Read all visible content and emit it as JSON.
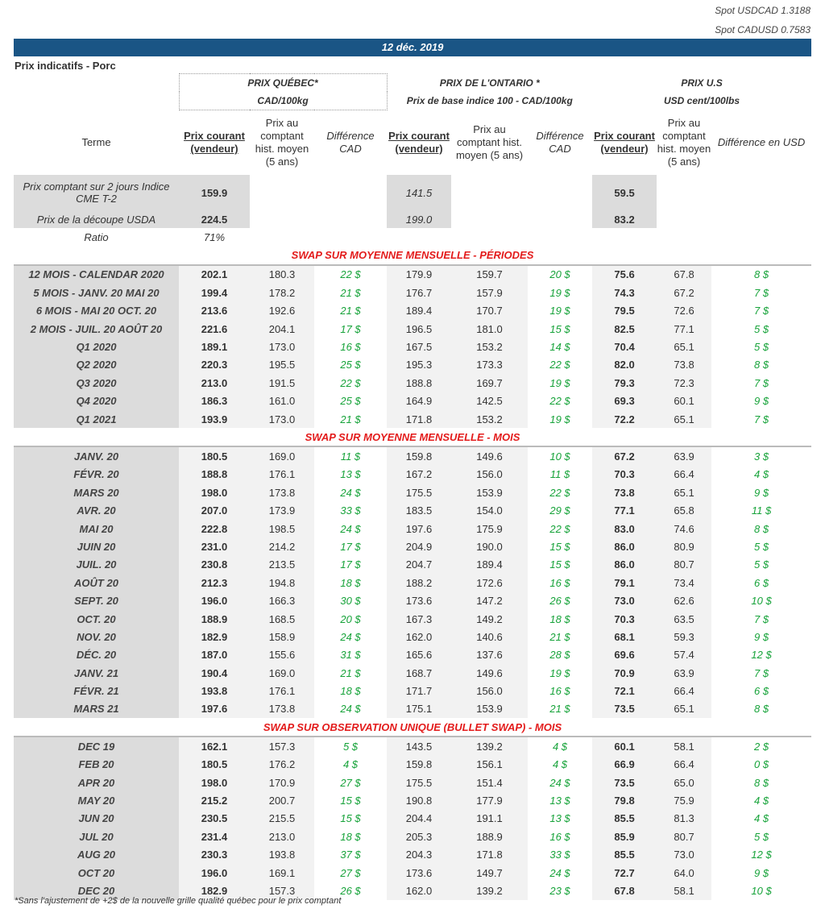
{
  "spot_usdcad": "Spot USDCAD 1.3188",
  "spot_cadusd": "Spot CADUSD 0.7583",
  "date": "12 déc. 2019",
  "subtitle": "Prix indicatifs - Porc",
  "groups": {
    "quebec": {
      "title": "PRIX QUÉBEC*",
      "unit": "CAD/100kg"
    },
    "ontario": {
      "title": "PRIX DE L'ONTARIO *",
      "unit": "Prix de base indice 100 - CAD/100kg"
    },
    "us": {
      "title": "PRIX U.S",
      "unit": "USD cent/100lbs"
    }
  },
  "columns": {
    "terme": "Terme",
    "q_prix": "Prix courant (vendeur)",
    "q_hist": "Prix au comptant hist. moyen (5 ans)",
    "q_diff": "Différence CAD",
    "o_prix": "Prix courant (vendeur)",
    "o_hist": "Prix au comptant hist. moyen (5 ans)",
    "o_diff": "Différence CAD",
    "u_prix": "Prix courant (vendeur)",
    "u_hist": "Prix au comptant hist. moyen (5 ans)",
    "u_diff": "Différence en USD"
  },
  "spot_rows": [
    {
      "label": "Prix comptant sur 2 jours Indice CME T-2",
      "q": "159.9",
      "o": "141.5",
      "u": "59.5"
    },
    {
      "label": "Prix de la découpe USDA",
      "q": "224.5",
      "o": "199.0",
      "u": "83.2"
    }
  ],
  "ratio": {
    "label": "Ratio",
    "value": "71%"
  },
  "sections": [
    {
      "title": "SWAP SUR MOYENNE MENSUELLE - PÉRIODES",
      "rows": [
        [
          "12 MOIS - CALENDAR 2020",
          "202.1",
          "180.3",
          "22 $",
          "179.9",
          "159.7",
          "20 $",
          "75.6",
          "67.8",
          "8 $"
        ],
        [
          "5 MOIS -  JANV. 20 MAI 20",
          "199.4",
          "178.2",
          "21 $",
          "176.7",
          "157.9",
          "19 $",
          "74.3",
          "67.2",
          "7 $"
        ],
        [
          "6 MOIS -  MAI 20 OCT. 20",
          "213.6",
          "192.6",
          "21 $",
          "189.4",
          "170.7",
          "19 $",
          "79.5",
          "72.6",
          "7 $"
        ],
        [
          "2 MOIS -  JUIL. 20  AOÛT 20",
          "221.6",
          "204.1",
          "17 $",
          "196.5",
          "181.0",
          "15 $",
          "82.5",
          "77.1",
          "5 $"
        ],
        [
          "Q1 2020",
          "189.1",
          "173.0",
          "16 $",
          "167.5",
          "153.2",
          "14 $",
          "70.4",
          "65.1",
          "5 $"
        ],
        [
          "Q2 2020",
          "220.3",
          "195.5",
          "25 $",
          "195.3",
          "173.3",
          "22 $",
          "82.0",
          "73.8",
          "8 $"
        ],
        [
          "Q3 2020",
          "213.0",
          "191.5",
          "22 $",
          "188.8",
          "169.7",
          "19 $",
          "79.3",
          "72.3",
          "7 $"
        ],
        [
          "Q4 2020",
          "186.3",
          "161.0",
          "25 $",
          "164.9",
          "142.5",
          "22 $",
          "69.3",
          "60.1",
          "9 $"
        ],
        [
          "Q1 2021",
          "193.9",
          "173.0",
          "21 $",
          "171.8",
          "153.2",
          "19 $",
          "72.2",
          "65.1",
          "7 $"
        ]
      ]
    },
    {
      "title": "SWAP SUR MOYENNE MENSUELLE - MOIS",
      "rows": [
        [
          "JANV. 20",
          "180.5",
          "169.0",
          "11 $",
          "159.8",
          "149.6",
          "10 $",
          "67.2",
          "63.9",
          "3 $"
        ],
        [
          "FÉVR. 20",
          "188.8",
          "176.1",
          "13 $",
          "167.2",
          "156.0",
          "11 $",
          "70.3",
          "66.4",
          "4 $"
        ],
        [
          "MARS 20",
          "198.0",
          "173.8",
          "24 $",
          "175.5",
          "153.9",
          "22 $",
          "73.8",
          "65.1",
          "9 $"
        ],
        [
          "AVR. 20",
          "207.0",
          "173.9",
          "33 $",
          "183.5",
          "154.0",
          "29 $",
          "77.1",
          "65.8",
          "11 $"
        ],
        [
          "MAI 20",
          "222.8",
          "198.5",
          "24 $",
          "197.6",
          "175.9",
          "22 $",
          "83.0",
          "74.6",
          "8 $"
        ],
        [
          "JUIN 20",
          "231.0",
          "214.2",
          "17 $",
          "204.9",
          "190.0",
          "15 $",
          "86.0",
          "80.9",
          "5 $"
        ],
        [
          "JUIL. 20",
          "230.8",
          "213.5",
          "17 $",
          "204.7",
          "189.4",
          "15 $",
          "86.0",
          "80.7",
          "5 $"
        ],
        [
          "AOÛT 20",
          "212.3",
          "194.8",
          "18 $",
          "188.2",
          "172.6",
          "16 $",
          "79.1",
          "73.4",
          "6 $"
        ],
        [
          "SEPT. 20",
          "196.0",
          "166.3",
          "30 $",
          "173.6",
          "147.2",
          "26 $",
          "73.0",
          "62.6",
          "10 $"
        ],
        [
          "OCT. 20",
          "188.9",
          "168.5",
          "20 $",
          "167.3",
          "149.2",
          "18 $",
          "70.3",
          "63.5",
          "7 $"
        ],
        [
          "NOV. 20",
          "182.9",
          "158.9",
          "24 $",
          "162.0",
          "140.6",
          "21 $",
          "68.1",
          "59.3",
          "9 $"
        ],
        [
          "DÉC. 20",
          "187.0",
          "155.6",
          "31 $",
          "165.6",
          "137.6",
          "28 $",
          "69.6",
          "57.4",
          "12 $"
        ],
        [
          "JANV. 21",
          "190.4",
          "169.0",
          "21 $",
          "168.7",
          "149.6",
          "19 $",
          "70.9",
          "63.9",
          "7 $"
        ],
        [
          "FÉVR. 21",
          "193.8",
          "176.1",
          "18 $",
          "171.7",
          "156.0",
          "16 $",
          "72.1",
          "66.4",
          "6 $"
        ],
        [
          "MARS 21",
          "197.6",
          "173.8",
          "24 $",
          "175.1",
          "153.9",
          "21 $",
          "73.5",
          "65.1",
          "8 $"
        ]
      ]
    },
    {
      "title": "SWAP SUR OBSERVATION UNIQUE (BULLET SWAP) - MOIS",
      "rows": [
        [
          "DEC 19",
          "162.1",
          "157.3",
          "5 $",
          "143.5",
          "139.2",
          "4 $",
          "60.1",
          "58.1",
          "2 $"
        ],
        [
          "FEB 20",
          "180.5",
          "176.2",
          "4 $",
          "159.8",
          "156.1",
          "4 $",
          "66.9",
          "66.4",
          "0 $"
        ],
        [
          "APR 20",
          "198.0",
          "170.9",
          "27 $",
          "175.5",
          "151.4",
          "24 $",
          "73.5",
          "65.0",
          "8 $"
        ],
        [
          "MAY 20",
          "215.2",
          "200.7",
          "15 $",
          "190.8",
          "177.9",
          "13 $",
          "79.8",
          "75.9",
          "4 $"
        ],
        [
          "JUN 20",
          "230.5",
          "215.5",
          "15 $",
          "204.4",
          "191.1",
          "13 $",
          "85.5",
          "81.3",
          "4 $"
        ],
        [
          "JUL 20",
          "231.4",
          "213.0",
          "18 $",
          "205.3",
          "188.9",
          "16 $",
          "85.9",
          "80.7",
          "5 $"
        ],
        [
          "AUG 20",
          "230.3",
          "193.8",
          "37 $",
          "204.3",
          "171.8",
          "33 $",
          "85.5",
          "73.0",
          "12 $"
        ],
        [
          "OCT 20",
          "196.0",
          "169.1",
          "27 $",
          "173.6",
          "149.7",
          "24 $",
          "72.7",
          "64.0",
          "9 $"
        ],
        [
          "DEC 20",
          "182.9",
          "157.3",
          "26 $",
          "162.0",
          "139.2",
          "23 $",
          "67.8",
          "58.1",
          "10 $"
        ]
      ]
    }
  ],
  "footnote": "*Sans l'ajustement de +2$ de la nouvelle grille qualité québec pour le prix comptant",
  "colors": {
    "banner": "#1a5585",
    "section_title": "#e31b1b",
    "difference": "#17a33a"
  }
}
